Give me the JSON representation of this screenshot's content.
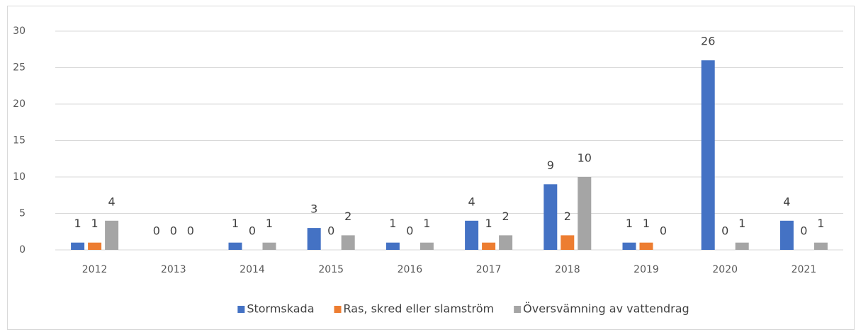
{
  "chart_data": {
    "type": "bar",
    "categories": [
      "2012",
      "2013",
      "2014",
      "2015",
      "2016",
      "2017",
      "2018",
      "2019",
      "2020",
      "2021"
    ],
    "series": [
      {
        "name": "Stormskada",
        "color": "#4472c4",
        "values": [
          1,
          0,
          1,
          3,
          1,
          4,
          9,
          1,
          26,
          4
        ]
      },
      {
        "name": "Ras, skred eller slamström",
        "color": "#ed7d31",
        "values": [
          1,
          0,
          0,
          0,
          0,
          1,
          2,
          1,
          0,
          0
        ]
      },
      {
        "name": "Översvämning av vattendrag",
        "color": "#a5a5a5",
        "values": [
          4,
          0,
          1,
          2,
          1,
          2,
          10,
          0,
          1,
          1
        ]
      }
    ],
    "ylim": [
      0,
      30
    ],
    "yticks": [
      0,
      5,
      10,
      15,
      20,
      25,
      30
    ],
    "grid": true,
    "legend": "bottom"
  }
}
